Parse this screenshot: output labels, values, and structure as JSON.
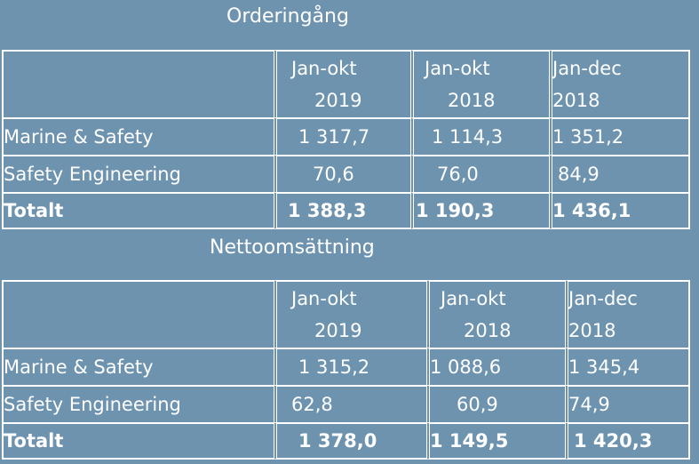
{
  "orders": {
    "title": "Orderingång",
    "columns": [
      {
        "line1": "Jan-okt",
        "line2": "2019"
      },
      {
        "line1": "Jan-okt",
        "line2": "2018"
      },
      {
        "line1": "Jan-dec",
        "line2": "2018"
      }
    ],
    "rows": [
      {
        "label": "Marine & Safety",
        "values": [
          "1 317,7",
          "1 114,3",
          "1 351,2"
        ]
      },
      {
        "label": "Safety Engineering",
        "values": [
          "70,6",
          "76,0",
          "84,9"
        ]
      },
      {
        "label": "Totalt",
        "values": [
          "1 388,3",
          "1 190,3",
          "1 436,1"
        ]
      }
    ]
  },
  "sales": {
    "title": "Nettoomsättning",
    "columns": [
      {
        "line1": "Jan-okt",
        "line2": "2019"
      },
      {
        "line1": "Jan-okt",
        "line2": "2018"
      },
      {
        "line1": "Jan-dec",
        "line2": "2018"
      }
    ],
    "rows": [
      {
        "label": "Marine & Safety",
        "values": [
          "1 315,2",
          "1 088,6",
          "1 345,4"
        ]
      },
      {
        "label": "Safety Engineering",
        "values": [
          "62,8",
          "60,9",
          "74,9"
        ]
      },
      {
        "label": "Totalt",
        "values": [
          "1 378,0",
          "1 149,5",
          "1 420,3"
        ]
      }
    ]
  }
}
